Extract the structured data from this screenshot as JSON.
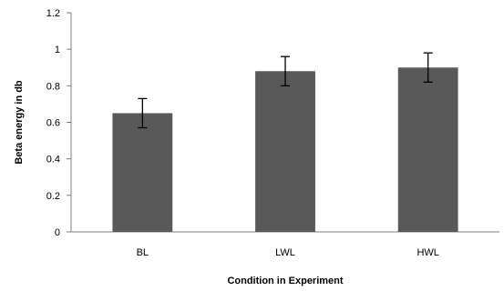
{
  "chart_data": {
    "type": "bar",
    "title": "",
    "xlabel": "Condition in Experiment",
    "ylabel": "Beta energy in db",
    "categories": [
      "BL",
      "LWL",
      "HWL"
    ],
    "values": [
      0.65,
      0.88,
      0.9
    ],
    "error": [
      0.08,
      0.08,
      0.08
    ],
    "ylim": [
      0,
      1.2
    ],
    "yticks": [
      "0",
      "0.2",
      "0.4",
      "0.6",
      "0.8",
      "1",
      "1.2"
    ],
    "grid": false,
    "legend": "none",
    "colors": {
      "bar": "#595959",
      "error_bar": "#000000",
      "axis": "#808080"
    }
  }
}
